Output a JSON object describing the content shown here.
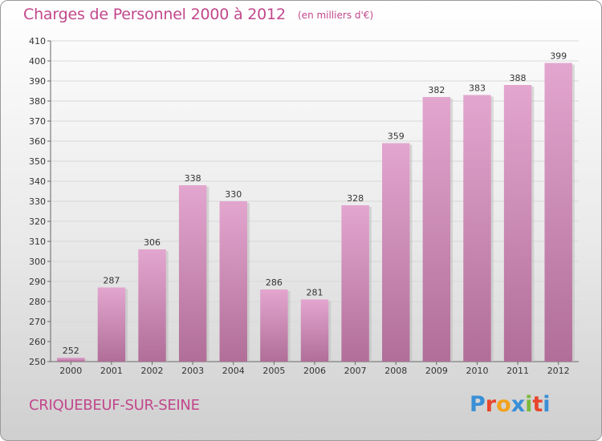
{
  "header": {
    "title": "Charges de Personnel 2000 à 2012",
    "subtitle": "(en milliers d'€)"
  },
  "footer": {
    "commune": "CRIQUEBEUF-SUR-SEINE",
    "brand": "Proxiti",
    "brand_colors": [
      "#3a8fd6",
      "#e8462d",
      "#f2a21c",
      "#3a8fd6",
      "#7bb83a",
      "#e8462d",
      "#3a8fd6"
    ]
  },
  "colors": {
    "text_accent": "#c2478c",
    "bar_top": "#e3a6cf",
    "bar_bottom": "#b06e98"
  },
  "chart_data": {
    "type": "bar",
    "title": "Charges de Personnel 2000 à 2012",
    "subtitle": "(en milliers d'€)",
    "xlabel": "",
    "ylabel": "",
    "categories": [
      "2000",
      "2001",
      "2002",
      "2003",
      "2004",
      "2005",
      "2006",
      "2007",
      "2008",
      "2009",
      "2010",
      "2011",
      "2012"
    ],
    "values": [
      252,
      287,
      306,
      338,
      330,
      286,
      281,
      328,
      359,
      382,
      383,
      388,
      399
    ],
    "ylim": [
      250,
      410
    ],
    "yticks": [
      250,
      260,
      270,
      280,
      290,
      300,
      310,
      320,
      330,
      340,
      350,
      360,
      370,
      380,
      390,
      400,
      410
    ],
    "grid": true,
    "legend": "none"
  }
}
